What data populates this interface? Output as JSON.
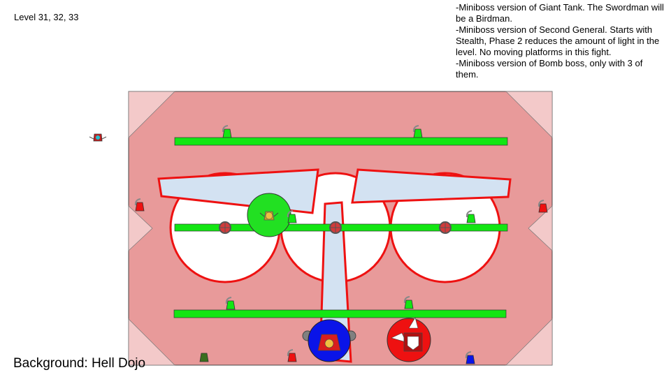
{
  "slide": {
    "level_label": "Level 31, 32, 33",
    "notes": [
      "-Miniboss version of Giant Tank. The Swordman will be a Birdman.",
      "-Miniboss version of Second General. Starts with Stealth, Phase 2 reduces the amount of light in the level. No moving platforms in this fight.",
      "-Miniboss version of Bomb boss, only with 3 of them."
    ],
    "background_label": "Background: Hell Dojo"
  },
  "colors": {
    "arena": "#e89a9a",
    "corner": "#f3c9c9",
    "platform": "#13e613",
    "pillar": "#d3e2f2",
    "outline": "#ee1111",
    "miniboss_blue": "#0a14e8",
    "miniboss_green": "#22e022",
    "miniboss_red": "#ee1111"
  }
}
